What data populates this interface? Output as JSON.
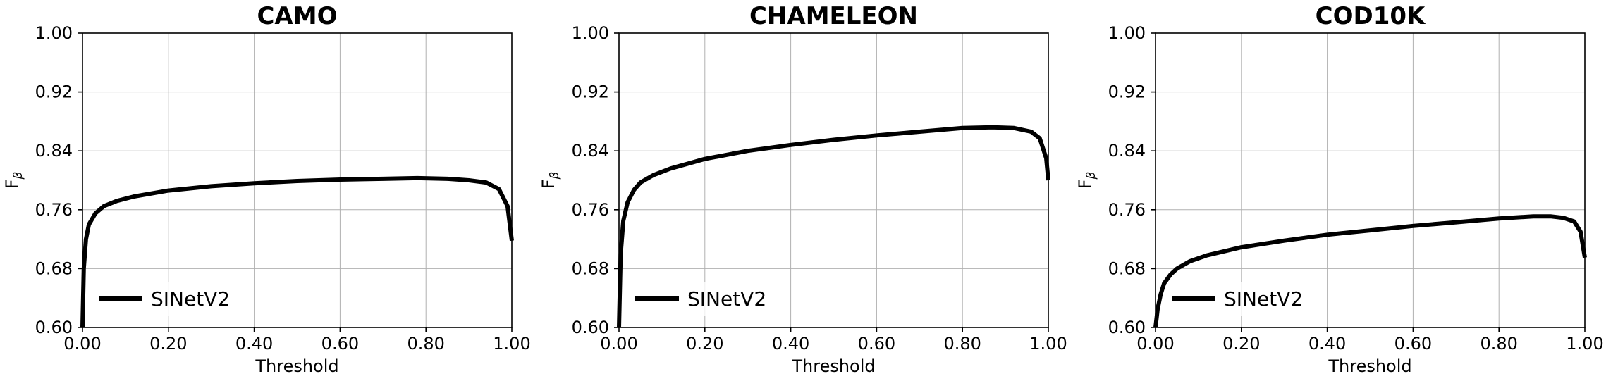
{
  "chart_data": [
    {
      "type": "line",
      "title": "CAMO",
      "xlabel": "Threshold",
      "ylabel": "F",
      "ylabel_sub": "β",
      "xlim": [
        0,
        1
      ],
      "ylim": [
        0.6,
        1.0
      ],
      "xticks": [
        "0.00",
        "0.20",
        "0.40",
        "0.60",
        "0.80",
        "1.00"
      ],
      "yticks": [
        "0.60",
        "0.68",
        "0.76",
        "0.84",
        "0.92",
        "1.00"
      ],
      "grid": true,
      "legend_position": "lower-left",
      "series": [
        {
          "name": "SINetV2",
          "x": [
            0.0,
            0.003,
            0.008,
            0.015,
            0.03,
            0.05,
            0.08,
            0.12,
            0.2,
            0.3,
            0.4,
            0.5,
            0.6,
            0.7,
            0.78,
            0.85,
            0.9,
            0.94,
            0.97,
            0.99,
            1.0
          ],
          "y": [
            0.6,
            0.68,
            0.72,
            0.74,
            0.755,
            0.765,
            0.772,
            0.778,
            0.786,
            0.792,
            0.796,
            0.799,
            0.801,
            0.802,
            0.803,
            0.802,
            0.8,
            0.797,
            0.788,
            0.765,
            0.718
          ]
        }
      ]
    },
    {
      "type": "line",
      "title": "CHAMELEON",
      "xlabel": "Threshold",
      "ylabel": "F",
      "ylabel_sub": "β",
      "xlim": [
        0,
        1
      ],
      "ylim": [
        0.6,
        1.0
      ],
      "xticks": [
        "0.00",
        "0.20",
        "0.40",
        "0.60",
        "0.80",
        "1.00"
      ],
      "yticks": [
        "0.60",
        "0.68",
        "0.76",
        "0.84",
        "0.92",
        "1.00"
      ],
      "grid": true,
      "legend_position": "lower-left",
      "series": [
        {
          "name": "SINetV2",
          "x": [
            0.0,
            0.004,
            0.01,
            0.02,
            0.035,
            0.05,
            0.08,
            0.12,
            0.2,
            0.3,
            0.4,
            0.5,
            0.6,
            0.7,
            0.8,
            0.87,
            0.92,
            0.96,
            0.98,
            0.995,
            1.0
          ],
          "y": [
            0.6,
            0.7,
            0.745,
            0.77,
            0.787,
            0.797,
            0.807,
            0.816,
            0.829,
            0.84,
            0.848,
            0.855,
            0.861,
            0.866,
            0.871,
            0.872,
            0.871,
            0.866,
            0.857,
            0.83,
            0.8
          ]
        }
      ]
    },
    {
      "type": "line",
      "title": "COD10K",
      "xlabel": "Threshold",
      "ylabel": "F",
      "ylabel_sub": "β",
      "xlim": [
        0,
        1
      ],
      "ylim": [
        0.6,
        1.0
      ],
      "xticks": [
        "0.00",
        "0.20",
        "0.40",
        "0.60",
        "0.80",
        "1.00"
      ],
      "yticks": [
        "0.60",
        "0.68",
        "0.76",
        "0.84",
        "0.92",
        "1.00"
      ],
      "grid": true,
      "legend_position": "lower-left",
      "series": [
        {
          "name": "SINetV2",
          "x": [
            0.0,
            0.005,
            0.012,
            0.02,
            0.035,
            0.05,
            0.08,
            0.12,
            0.2,
            0.3,
            0.4,
            0.5,
            0.6,
            0.7,
            0.8,
            0.88,
            0.92,
            0.95,
            0.975,
            0.99,
            1.0
          ],
          "y": [
            0.6,
            0.625,
            0.645,
            0.66,
            0.672,
            0.68,
            0.69,
            0.698,
            0.709,
            0.718,
            0.726,
            0.732,
            0.738,
            0.743,
            0.748,
            0.751,
            0.751,
            0.749,
            0.744,
            0.73,
            0.695
          ]
        }
      ]
    }
  ]
}
